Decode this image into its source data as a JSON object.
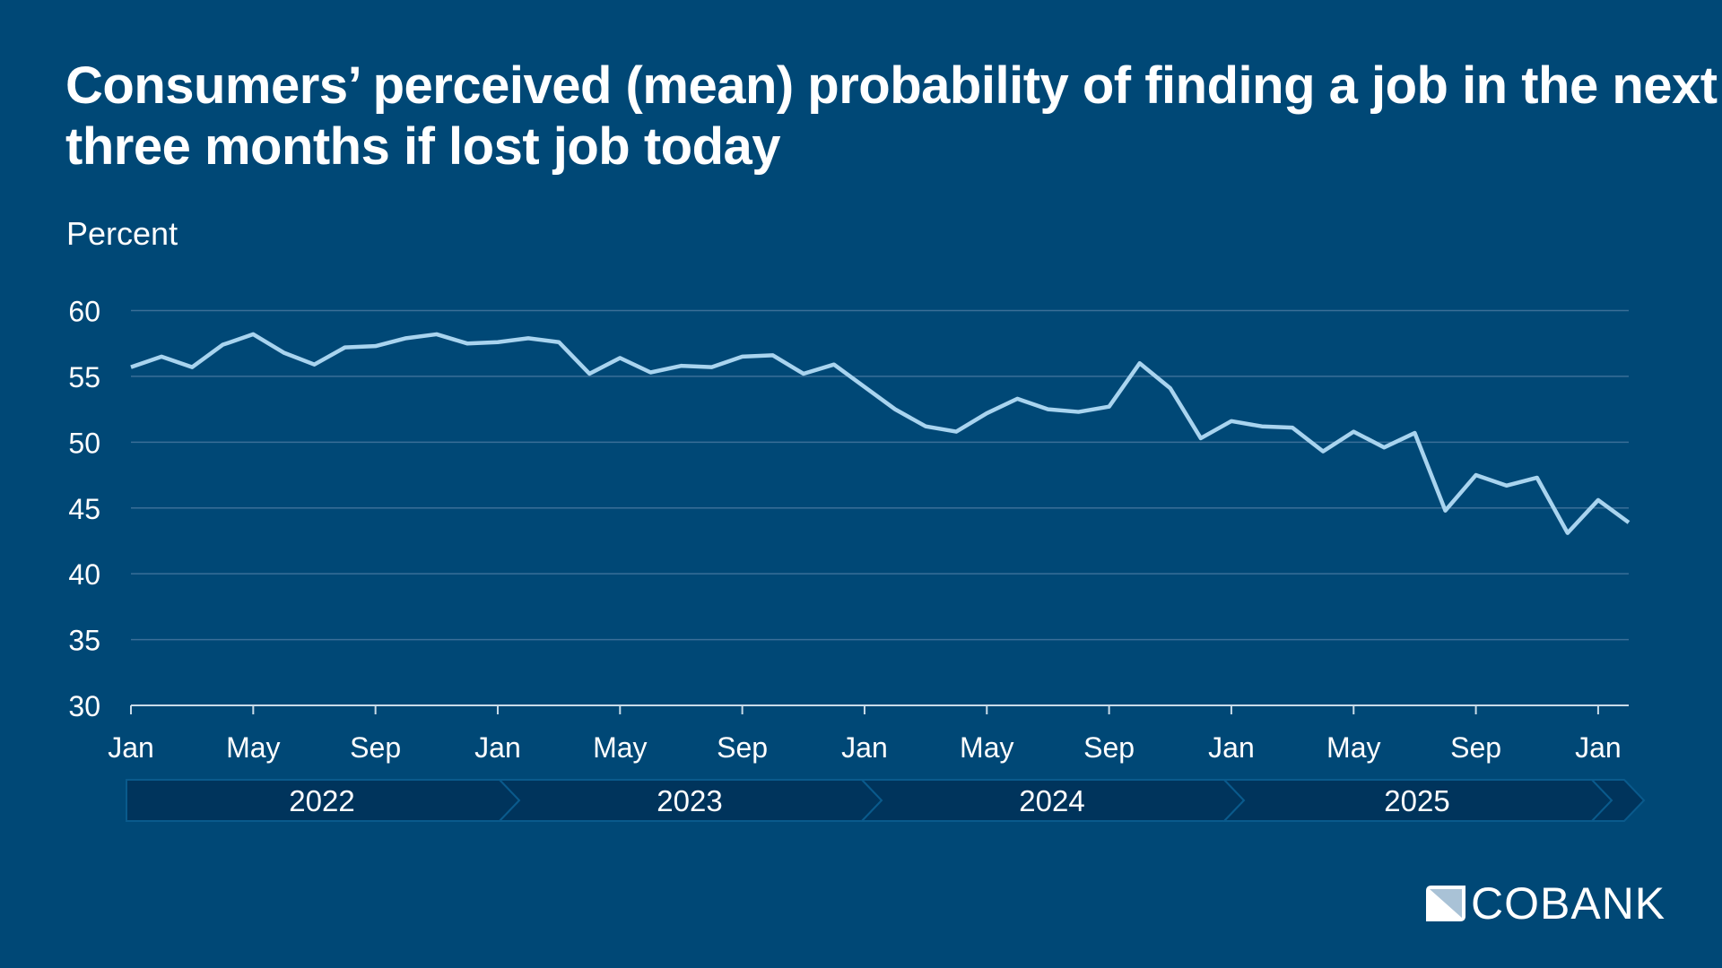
{
  "chart_data": {
    "type": "line",
    "title": "Consumers’ perceived (mean) probability of finding a job in the next three months if lost job today",
    "ylabel": "Percent",
    "ylim": [
      30,
      60
    ],
    "yticks": [
      30,
      35,
      40,
      45,
      50,
      55,
      60
    ],
    "grid": true,
    "line_color": "#a9d4ef",
    "xtick_labels": [
      "Jan",
      "May",
      "Sep",
      "Jan",
      "May",
      "Sep",
      "Jan",
      "May",
      "Sep",
      "Jan",
      "May",
      "Sep",
      "Jan"
    ],
    "years": [
      "2022",
      "2023",
      "2024",
      "2025"
    ],
    "x": [
      "2022-01",
      "2022-02",
      "2022-03",
      "2022-04",
      "2022-05",
      "2022-06",
      "2022-07",
      "2022-08",
      "2022-09",
      "2022-10",
      "2022-11",
      "2022-12",
      "2023-01",
      "2023-02",
      "2023-03",
      "2023-04",
      "2023-05",
      "2023-06",
      "2023-07",
      "2023-08",
      "2023-09",
      "2023-10",
      "2023-11",
      "2023-12",
      "2024-01",
      "2024-02",
      "2024-03",
      "2024-04",
      "2024-05",
      "2024-06",
      "2024-07",
      "2024-08",
      "2024-09",
      "2024-10",
      "2024-11",
      "2024-12",
      "2025-01",
      "2025-02",
      "2025-03",
      "2025-04",
      "2025-05",
      "2025-06",
      "2025-07",
      "2025-08",
      "2025-09",
      "2025-10",
      "2025-11",
      "2025-12",
      "2026-01",
      "2026-02"
    ],
    "values": [
      55.7,
      56.5,
      55.7,
      57.4,
      58.2,
      56.8,
      55.9,
      57.2,
      57.3,
      57.9,
      58.2,
      57.5,
      57.6,
      57.9,
      57.6,
      55.2,
      56.4,
      55.3,
      55.8,
      55.7,
      56.5,
      56.6,
      55.2,
      55.9,
      54.2,
      52.5,
      51.2,
      50.8,
      52.2,
      53.3,
      52.5,
      52.3,
      52.7,
      56.0,
      54.1,
      50.3,
      51.6,
      51.2,
      51.1,
      49.3,
      50.8,
      49.6,
      50.7,
      44.8,
      47.5,
      46.7,
      47.3,
      43.1,
      45.6,
      43.9
    ]
  },
  "logo": {
    "text": "COBANK"
  },
  "colors": {
    "background": "#004876",
    "band": "#00345c",
    "grid": "#3a6f98"
  }
}
